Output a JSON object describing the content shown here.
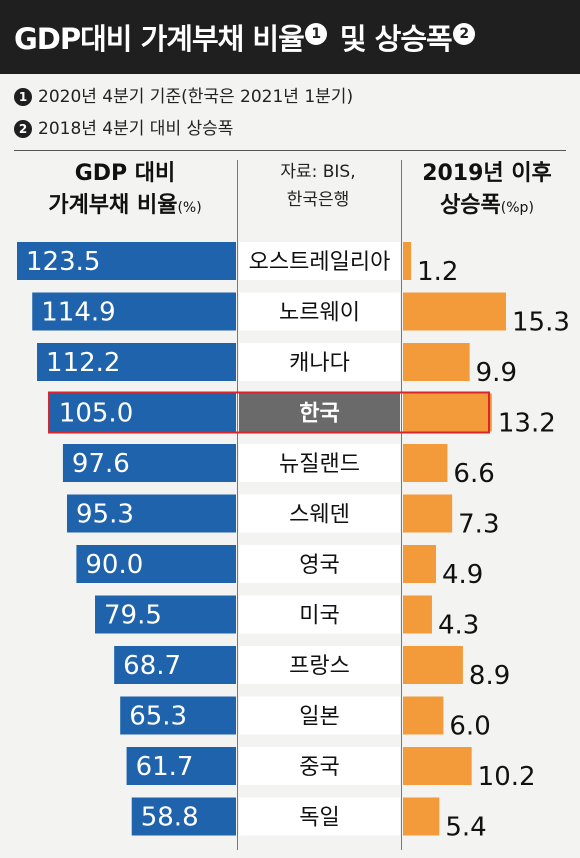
{
  "title": {
    "part1": "GDP대비 가계부채 비율",
    "marker1": "1",
    "part2": "및 상승폭",
    "marker2": "2"
  },
  "notes": [
    {
      "marker": "1",
      "text": "2020년 4분기 기준(한국은 2021년 1분기)"
    },
    {
      "marker": "2",
      "text": "2018년 4분기 대비 상승폭"
    }
  ],
  "headers": {
    "left_line1": "GDP 대비",
    "left_line2": "가계부채 비율",
    "left_unit": "(%)",
    "source_line1": "자료: BIS,",
    "source_line2": "한국은행",
    "right_line1": "2019년 이후",
    "right_line2": "상승폭",
    "right_unit": "(%p)"
  },
  "colors": {
    "ratio_bar": "#1f63ad",
    "increase_bar": "#f39a3a",
    "highlight_border": "#d9262b",
    "highlight_label_bg": "#6a6a6a"
  },
  "chart_data": {
    "type": "bar",
    "categories": [
      "오스트레일리아",
      "노르웨이",
      "캐나다",
      "한국",
      "뉴질랜드",
      "스웨덴",
      "영국",
      "미국",
      "프랑스",
      "일본",
      "중국",
      "독일"
    ],
    "series": [
      {
        "name": "GDP 대비 가계부채 비율",
        "values": [
          123.5,
          114.9,
          112.2,
          105.0,
          97.6,
          95.3,
          90.0,
          79.5,
          68.7,
          65.3,
          61.7,
          58.8
        ]
      },
      {
        "name": "2019년 이후 상승폭",
        "values": [
          1.2,
          15.3,
          9.9,
          13.2,
          6.6,
          7.3,
          4.9,
          4.3,
          8.9,
          6.0,
          10.2,
          5.4
        ]
      }
    ],
    "value_labels": {
      "ratio": [
        "123.5",
        "114.9",
        "112.2",
        "105.0",
        "97.6",
        "95.3",
        "90.0",
        "79.5",
        "68.7",
        "65.3",
        "61.7",
        "58.8"
      ],
      "increase": [
        "1.2",
        "15.3",
        "9.9",
        "13.2",
        "6.6",
        "7.3",
        "4.9",
        "4.3",
        "8.9",
        "6.0",
        "10.2",
        "5.4"
      ]
    },
    "highlight": "한국",
    "grid": false
  }
}
